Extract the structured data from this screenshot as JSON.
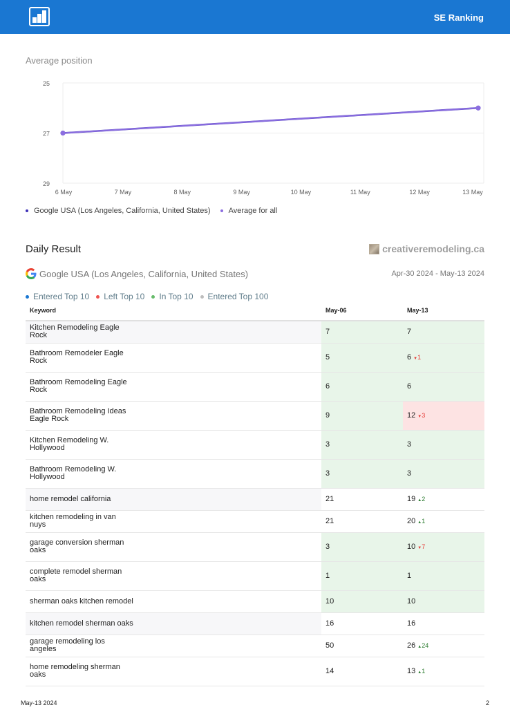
{
  "header": {
    "brand": "SE Ranking",
    "logo_icon": "bar-chart-logo-icon",
    "bg_color": "#1a77d2"
  },
  "chart": {
    "title": "Average position"
  },
  "chart_data": {
    "type": "line",
    "title": "Average position",
    "categories": [
      "6 May",
      "7 May",
      "8 May",
      "9 May",
      "10 May",
      "11 May",
      "12 May",
      "13 May"
    ],
    "y_ticks": [
      "25",
      "27",
      "29"
    ],
    "ylim": [
      25,
      29
    ],
    "y_inverted": true,
    "grid": true,
    "legend_position": "bottom-left",
    "series": [
      {
        "name": "Google USA (Los Angeles, California, United States)",
        "color": "#3f31b8",
        "values": [
          27,
          null,
          null,
          null,
          null,
          null,
          null,
          26
        ]
      },
      {
        "name": "Average for all",
        "color": "#8c6ee0",
        "values": [
          27,
          null,
          null,
          null,
          null,
          null,
          null,
          26
        ]
      }
    ]
  },
  "daily": {
    "title": "Daily Result",
    "site": "creativeremodeling.ca",
    "engine": "Google USA (Los Angeles, California, United States)",
    "engine_icon": "google-g-icon",
    "date_range": "Apr-30 2024 - May-13 2024",
    "legend": [
      {
        "label": "Entered Top 10",
        "color": "#1a77d2"
      },
      {
        "label": "Left Top 10",
        "color": "#ef5350"
      },
      {
        "label": "In Top 10",
        "color": "#66bb6a"
      },
      {
        "label": "Entered Top 100",
        "color": "#bdbdbd"
      }
    ],
    "columns": [
      "Keyword",
      "May-06",
      "May-13"
    ],
    "rows": [
      {
        "keyword": "Kitchen Remodeling Eagle Rock",
        "c1": "7",
        "c2": "7",
        "change": "",
        "dir": "",
        "c1_bg": "green",
        "c2_bg": "green"
      },
      {
        "keyword": "Bathroom Remodeler Eagle Rock",
        "c1": "5",
        "c2": "6",
        "change": "1",
        "dir": "down",
        "c1_bg": "green",
        "c2_bg": "green"
      },
      {
        "keyword": "Bathroom Remodeling Eagle Rock",
        "c1": "6",
        "c2": "6",
        "change": "",
        "dir": "",
        "c1_bg": "green",
        "c2_bg": "green"
      },
      {
        "keyword": "Bathroom Remodeling Ideas Eagle Rock",
        "c1": "9",
        "c2": "12",
        "change": "3",
        "dir": "down",
        "c1_bg": "green",
        "c2_bg": "red"
      },
      {
        "keyword": "Kitchen Remodeling W. Hollywood",
        "c1": "3",
        "c2": "3",
        "change": "",
        "dir": "",
        "c1_bg": "green",
        "c2_bg": "green"
      },
      {
        "keyword": "Bathroom Remodeling W. Hollywood",
        "c1": "3",
        "c2": "3",
        "change": "",
        "dir": "",
        "c1_bg": "green",
        "c2_bg": "green"
      },
      {
        "keyword": "home remodel california",
        "c1": "21",
        "c2": "19",
        "change": "2",
        "dir": "up",
        "c1_bg": "",
        "c2_bg": ""
      },
      {
        "keyword": "kitchen remodeling in van nuys",
        "c1": "21",
        "c2": "20",
        "change": "1",
        "dir": "up",
        "c1_bg": "",
        "c2_bg": ""
      },
      {
        "keyword": "garage conversion sherman oaks",
        "c1": "3",
        "c2": "10",
        "change": "7",
        "dir": "down",
        "c1_bg": "green",
        "c2_bg": "green"
      },
      {
        "keyword": "complete remodel sherman oaks",
        "c1": "1",
        "c2": "1",
        "change": "",
        "dir": "",
        "c1_bg": "green",
        "c2_bg": "green"
      },
      {
        "keyword": "sherman oaks kitchen remodel",
        "c1": "10",
        "c2": "10",
        "change": "",
        "dir": "",
        "c1_bg": "green",
        "c2_bg": "green"
      },
      {
        "keyword": "kitchen remodel sherman oaks",
        "c1": "16",
        "c2": "16",
        "change": "",
        "dir": "",
        "c1_bg": "",
        "c2_bg": ""
      },
      {
        "keyword": "garage remodeling los angeles",
        "c1": "50",
        "c2": "26",
        "change": "24",
        "dir": "up",
        "c1_bg": "",
        "c2_bg": ""
      },
      {
        "keyword": "home remodeling sherman oaks",
        "c1": "14",
        "c2": "13",
        "change": "1",
        "dir": "up",
        "c1_bg": "",
        "c2_bg": ""
      }
    ]
  },
  "footer": {
    "date": "May-13 2024",
    "page": "2"
  }
}
